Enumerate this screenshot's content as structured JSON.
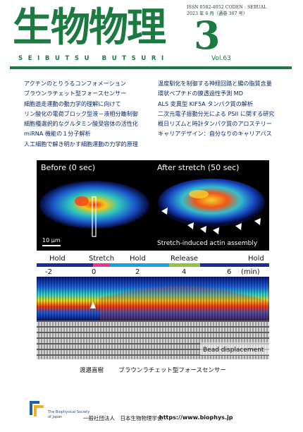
{
  "masthead": {
    "title_jp": "生物物理",
    "title_romaji": "SEIBUTSU BUTSURI",
    "issn_line": "ISSN 0582-4052  CODEN : SEBUAL",
    "date_line": "2023 年 6 月（通巻 367 号）",
    "issue_number": "3",
    "volume": "Vol.63",
    "brand_color": "#1b7a3f"
  },
  "toc": {
    "left": [
      "アクチンのとりうるコンフォメーション",
      "ブラウンラチェット型フォースセンサー",
      "細胞遊走運動の動力学的理解に向けて",
      "リン酸化の電荷ブロック型液－液相分離制御",
      "細胞種選択的なグルタミン酸受容体の活性化",
      "miRNA 機能の１分子解析",
      "人工細胞で解き明かす細胞運動の力学的原理"
    ],
    "right": [
      "温度馴化を制御する神経回路と腸の脂質含量",
      "環状ペプチドの膜透過性予測 MD",
      "ALS 変異型 KIF5A タンパク質の解析",
      "二次元電子振動分光による PSII に関する研究",
      "概日リズムと時計タンパク質のアロステリー",
      "キャリアデザイン：自分なりのキャリアパス"
    ],
    "text_color": "#0a2a6a"
  },
  "figure": {
    "label_before": "Before (0 sec)",
    "label_after": "After stretch (50 sec)",
    "scale_bar": "10 μm",
    "assembly_label": "Stretch-induced actin assembly",
    "phases": [
      "Hold",
      "Stretch",
      "Hold",
      "Release",
      "Hold"
    ],
    "phase_colors": [
      "#1a2a9a",
      "#e6388a",
      "#1aa0e0",
      "#8cc63f",
      "#1a2a9a"
    ],
    "time_ticks": [
      "-2",
      "0",
      "2",
      "4",
      "6"
    ],
    "time_unit": "(min)",
    "bead_label": "Bead displacement"
  },
  "caption": {
    "author": "渡邉直樹",
    "title": "ブラウンラチェット型フォースセンサー"
  },
  "footer": {
    "bps_name_1": "The Biophysical Society",
    "bps_name_2": "of Japan",
    "society": "一般社団法人　日本生物物理学会",
    "url": "https://www.biophys.jp"
  }
}
